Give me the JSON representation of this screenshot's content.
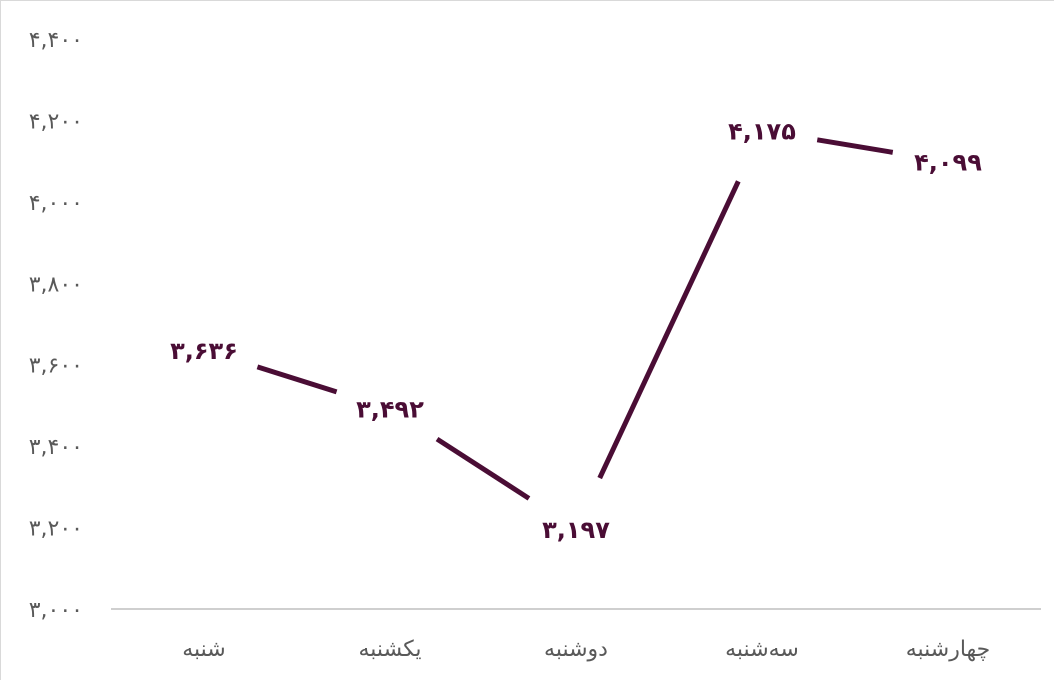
{
  "chart_data": {
    "type": "line",
    "title": "",
    "xlabel": "",
    "ylabel": "",
    "categories": [
      "شنبه",
      "یکشنبه",
      "دوشنبه",
      "سه‌شنبه",
      "چهارشنبه"
    ],
    "values": [
      3636,
      3492,
      3197,
      4175,
      4099
    ],
    "value_labels": [
      "۳,۶۳۶",
      "۳,۴۹۲",
      "۳,۱۹۷",
      "۴,۱۷۵",
      "۴,۰۹۹"
    ],
    "ylim": [
      3000,
      4400
    ],
    "yticks": [
      3000,
      3200,
      3400,
      3600,
      3800,
      4000,
      4200,
      4400
    ],
    "ytick_labels": [
      "۳,۰۰۰",
      "۳,۲۰۰",
      "۳,۴۰۰",
      "۳,۶۰۰",
      "۳,۸۰۰",
      "۴,۰۰۰",
      "۴,۲۰۰",
      "۴,۴۰۰"
    ],
    "grid": false,
    "legend": "none",
    "line_color": "#4a0d35",
    "axis_color": "#bfbfbf",
    "text_color": "#595959"
  }
}
